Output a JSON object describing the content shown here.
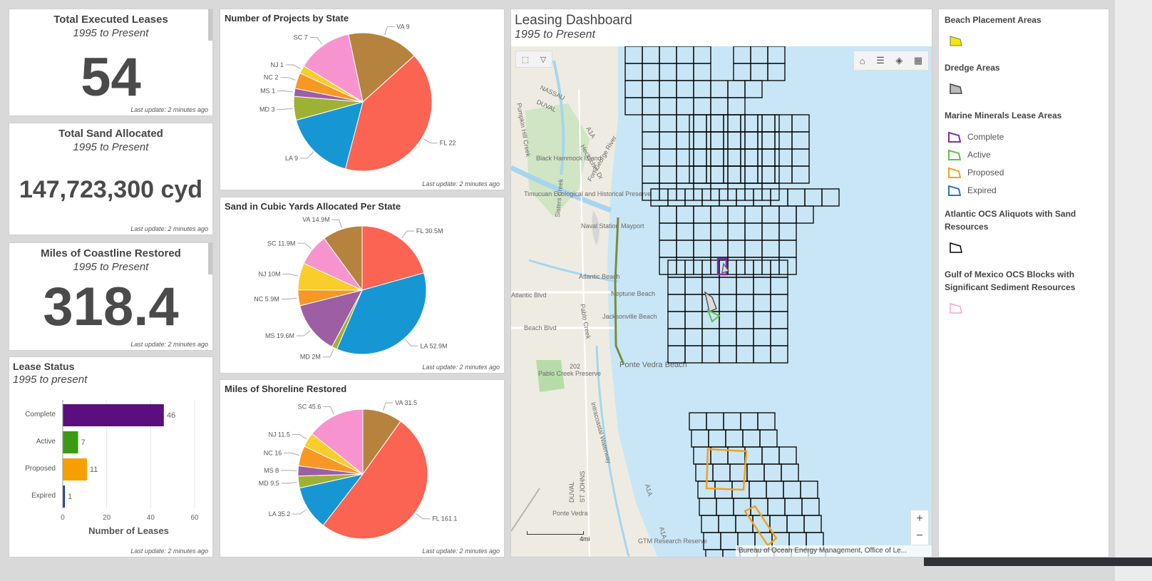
{
  "indicators": {
    "leases": {
      "title": "Total Executed Leases",
      "subtitle": "1995 to Present",
      "value": "54",
      "updated": "Last update: 2 minutes ago"
    },
    "sand": {
      "title": "Total Sand Allocated",
      "subtitle": "1995 to Present",
      "value": "147,723,300 cyd",
      "updated": "Last update: 2 minutes ago"
    },
    "coast": {
      "title": "Miles of Coastline Restored",
      "subtitle": "1995 to Present",
      "value": "318.4",
      "updated": "Last update: 2 minutes ago"
    }
  },
  "lease_status": {
    "title": "Lease Status",
    "subtitle": "1995 to present",
    "updated": "Last update: 2 minutes ago"
  },
  "pie_charts": {
    "projects": {
      "title": "Number of Projects by State",
      "updated": "Last update: 2 minutes ago"
    },
    "sand": {
      "title": "Sand in Cubic Yards Allocated Per State",
      "updated": "Last update: 2 minutes ago"
    },
    "shoreline": {
      "title": "Miles of Shoreline Restored",
      "updated": "Last update: 2 minutes ago"
    }
  },
  "map": {
    "title": "Leasing Dashboard",
    "subtitle": "1995 to Present",
    "attribution": "Bureau of Ocean Energy Management, Office of Le...",
    "scale_label": "4mi",
    "zoom_in": "+",
    "zoom_out": "−",
    "place_labels": [
      "NASSAU",
      "DUVAL",
      "Black Hammock Island",
      "Timucuan Ecological and Historical Preserve",
      "Naval Station Mayport",
      "Atlantic Beach",
      "Neptune Beach",
      "Jacksonville Beach",
      "Beach Blvd",
      "Ponte Vedra Beach",
      "Pablo Creek Preserve",
      "Ponte Vedra",
      "GTM Research Reserve",
      "Atlantic Blvd",
      "DUVAL",
      "ST JOHNS",
      "Heckscher Dr",
      "Fort George River",
      "Sisters Creek",
      "Pumpkin Hill Creek",
      "Pablo Creek",
      "Intracoastal Waterway",
      "A1A",
      "A1A",
      "A1A",
      "202"
    ]
  },
  "legend": {
    "beach": "Beach Placement Areas",
    "dredge": "Dredge Areas",
    "marine": "Marine Minerals Lease Areas",
    "marine_items": [
      {
        "label": "Complete",
        "color": "#7b2fa8"
      },
      {
        "label": "Active",
        "color": "#5cc24a"
      },
      {
        "label": "Proposed",
        "color": "#f0a21f"
      },
      {
        "label": "Expired",
        "color": "#2f74c4"
      }
    ],
    "atlantic": "Atlantic OCS Aliquots with Sand Resources",
    "gulf": "Gulf of Mexico OCS Blocks with Significant Sediment Resources"
  },
  "chart_data": [
    {
      "type": "bar",
      "orientation": "horizontal",
      "title": "Lease Status",
      "subtitle": "1995 to present",
      "categories": [
        "Complete",
        "Active",
        "Proposed",
        "Expired"
      ],
      "values": [
        46,
        7,
        11,
        1
      ],
      "colors": [
        "#5b0f7e",
        "#3a9a12",
        "#f5a000",
        "#1f3f8a"
      ],
      "xlabel": "Number of Leases",
      "xlim": [
        0,
        60
      ],
      "xticks": [
        0,
        20,
        40,
        60
      ]
    },
    {
      "type": "pie",
      "title": "Number of Projects by State",
      "slices": [
        {
          "label": "VA 9",
          "value": 9,
          "color": "#b5833e"
        },
        {
          "label": "FL 22",
          "value": 22,
          "color": "#fb6352"
        },
        {
          "label": "LA 9",
          "value": 9,
          "color": "#1796d4"
        },
        {
          "label": "MD 3",
          "value": 3,
          "color": "#9fb134"
        },
        {
          "label": "MS 1",
          "value": 1,
          "color": "#9d5ea3"
        },
        {
          "label": "NC 2",
          "value": 2,
          "color": "#f79824"
        },
        {
          "label": "NJ 1",
          "value": 1,
          "color": "#f9cd2b"
        },
        {
          "label": "SC 7",
          "value": 7,
          "color": "#f794d0"
        }
      ]
    },
    {
      "type": "pie",
      "title": "Sand in Cubic Yards Allocated Per State",
      "slices": [
        {
          "label": "FL 30.5M",
          "value": 30.5,
          "color": "#fb6352"
        },
        {
          "label": "LA 52.9M",
          "value": 52.9,
          "color": "#1796d4"
        },
        {
          "label": "MD 2M",
          "value": 2,
          "color": "#9fb134"
        },
        {
          "label": "MS 19.6M",
          "value": 19.6,
          "color": "#9d5ea3"
        },
        {
          "label": "NC 5.9M",
          "value": 5.9,
          "color": "#f79824"
        },
        {
          "label": "NJ 10M",
          "value": 10,
          "color": "#f9cd2b"
        },
        {
          "label": "SC 11.9M",
          "value": 11.9,
          "color": "#f794d0"
        },
        {
          "label": "VA 14.9M",
          "value": 14.9,
          "color": "#b5833e"
        }
      ]
    },
    {
      "type": "pie",
      "title": "Miles of Shoreline Restored",
      "slices": [
        {
          "label": "VA 31.5",
          "value": 31.5,
          "color": "#b5833e"
        },
        {
          "label": "FL 161.1",
          "value": 161.1,
          "color": "#fb6352"
        },
        {
          "label": "LA 35.2",
          "value": 35.2,
          "color": "#1796d4"
        },
        {
          "label": "MD 9.5",
          "value": 9.5,
          "color": "#9fb134"
        },
        {
          "label": "MS 8",
          "value": 8,
          "color": "#9d5ea3"
        },
        {
          "label": "NC 16",
          "value": 16,
          "color": "#f79824"
        },
        {
          "label": "NJ 11.5",
          "value": 11.5,
          "color": "#f9cd2b"
        },
        {
          "label": "SC 45.6",
          "value": 45.6,
          "color": "#f794d0"
        }
      ]
    }
  ]
}
